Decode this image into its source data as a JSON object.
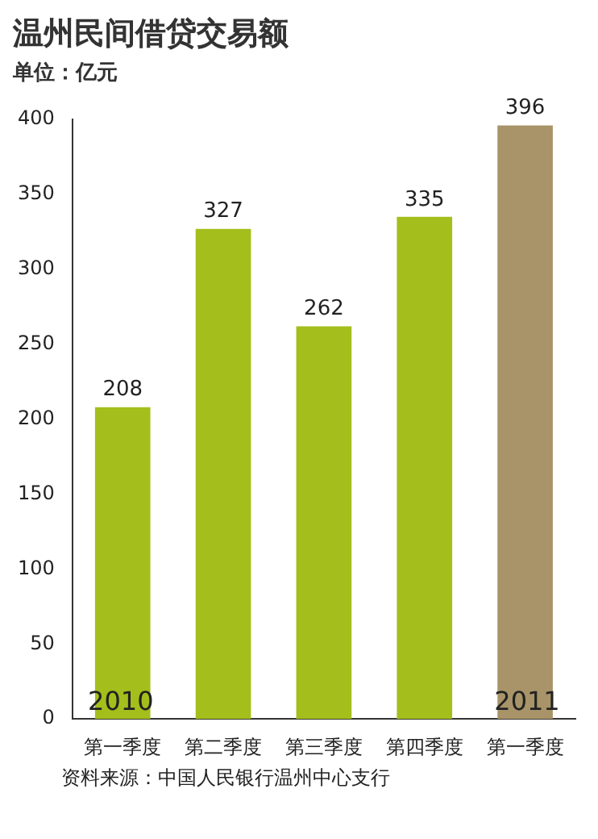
{
  "chart_data": {
    "type": "bar",
    "title": "温州民间借贷交易额",
    "subtitle": "单位：亿元",
    "categories": [
      "第一季度",
      "第二季度",
      "第三季度",
      "第四季度",
      "第一季度"
    ],
    "values": [
      208,
      327,
      262,
      335,
      396
    ],
    "colors": [
      "#a4be1c",
      "#a4be1c",
      "#a4be1c",
      "#a4be1c",
      "#a89468"
    ],
    "ylim": [
      0,
      400
    ],
    "yticks": [
      0,
      50,
      100,
      150,
      200,
      250,
      300,
      350,
      400
    ],
    "grid": false,
    "legend": false,
    "data_labels": true,
    "annotations": [
      "2010",
      "2011",
      "资料来源：中国人民银行温州中心支行"
    ]
  }
}
